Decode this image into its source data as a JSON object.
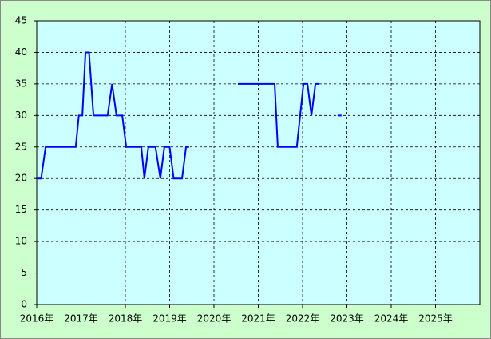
{
  "chart_data": {
    "type": "line",
    "x": [
      2016.0,
      2016.1,
      2016.2,
      2016.88,
      2016.95,
      2017.03,
      2017.1,
      2017.18,
      2017.28,
      2017.6,
      2017.7,
      2017.8,
      2017.93,
      2018.02,
      2018.36,
      2018.43,
      2018.52,
      2018.68,
      2018.79,
      2018.88,
      2019.0,
      2019.09,
      2019.28,
      2019.37,
      2019.44,
      2020.0,
      2020.54,
      2021.37,
      2021.44,
      2021.87,
      2022.02,
      2022.11,
      2022.2,
      2022.29,
      2022.38,
      2022.6,
      2022.79,
      2022.88
    ],
    "series": [
      {
        "color": "#0000ff",
        "values": [
          20,
          20,
          25,
          25,
          30,
          30,
          40,
          40,
          30,
          30,
          35,
          30,
          30,
          25,
          25,
          20,
          25,
          25,
          20,
          25,
          25,
          20,
          20,
          25,
          25,
          null,
          35,
          35,
          25,
          25,
          35,
          35,
          30,
          35,
          35,
          null,
          30,
          30
        ]
      }
    ],
    "xlim": [
      2016,
      2026
    ],
    "xticks": [
      {
        "value": 2016,
        "label": "2016年"
      },
      {
        "value": 2017,
        "label": "2017年"
      },
      {
        "value": 2018,
        "label": "2018年"
      },
      {
        "value": 2019,
        "label": "2019年"
      },
      {
        "value": 2020,
        "label": "2020年"
      },
      {
        "value": 2021,
        "label": "2021年"
      },
      {
        "value": 2022,
        "label": "2022年"
      },
      {
        "value": 2023,
        "label": "2023年"
      },
      {
        "value": 2024,
        "label": "2024年"
      },
      {
        "value": 2025,
        "label": "2025年"
      }
    ],
    "ylim": [
      0,
      45
    ],
    "yticks": [
      0,
      5,
      10,
      15,
      20,
      25,
      30,
      35,
      40,
      45
    ],
    "grid": true
  }
}
